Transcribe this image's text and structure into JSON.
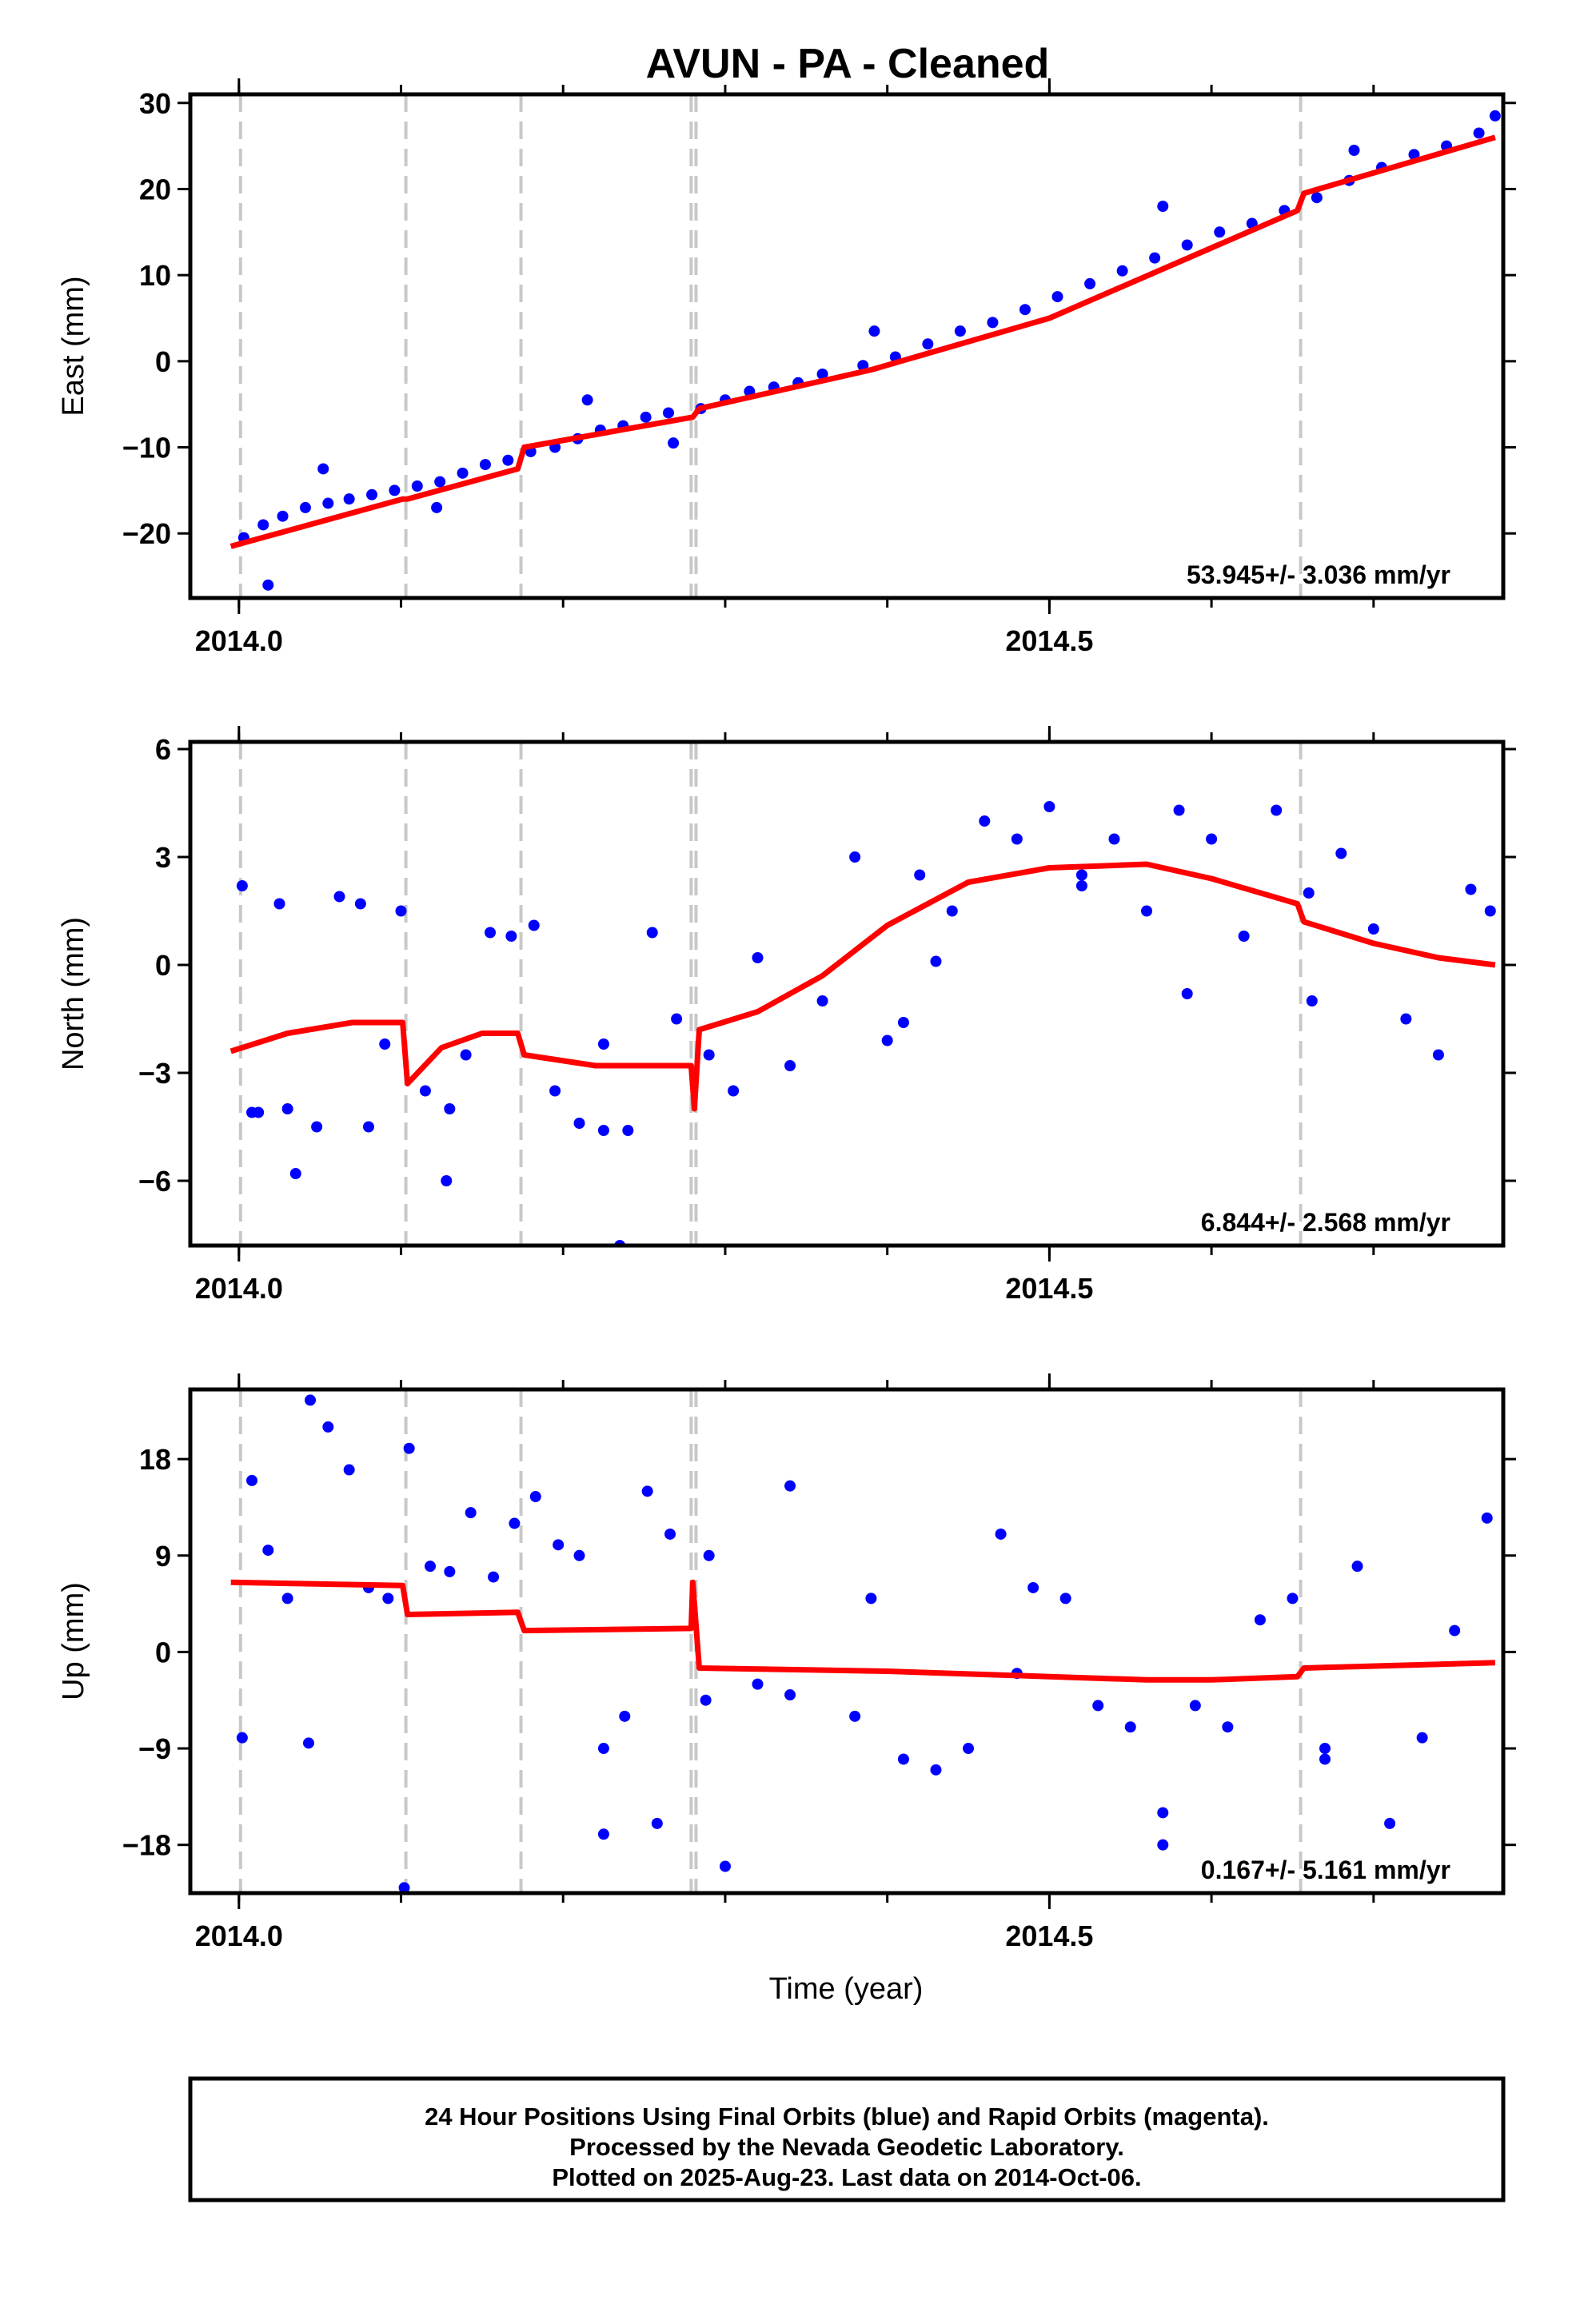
{
  "chart_data": [
    {
      "type": "scatter",
      "title": "AVUN  - PA - Cleaned",
      "xlabel": "",
      "ylabel": "East (mm)",
      "xlim": [
        2013.97,
        2014.78
      ],
      "ylim": [
        -27.5,
        31
      ],
      "xticks": [
        2014.0,
        2014.5
      ],
      "xtick_labels": [
        "2014.0",
        "2014.5"
      ],
      "yticks": [
        -20,
        -10,
        0,
        10,
        20,
        30
      ],
      "ytick_labels": [
        "−20",
        "−10",
        "0",
        "10",
        "20",
        "30"
      ],
      "rate_text": "53.945+/- 3.036 mm/yr",
      "event_lines": [
        2014.001,
        2014.103,
        2014.174,
        2014.279,
        2014.282,
        2014.655
      ],
      "series": [
        {
          "name": "Final Orbits",
          "color": "#0000ff",
          "x": [
            2014.003,
            2014.015,
            2014.027,
            2014.041,
            2014.055,
            2014.068,
            2014.082,
            2014.096,
            2014.11,
            2014.124,
            2014.138,
            2014.152,
            2014.166,
            2014.18,
            2014.195,
            2014.209,
            2014.223,
            2014.237,
            2014.251,
            2014.265,
            2014.285,
            2014.3,
            2014.315,
            2014.33,
            2014.345,
            2014.36,
            2014.385,
            2014.405,
            2014.425,
            2014.445,
            2014.465,
            2014.485,
            2014.505,
            2014.525,
            2014.545,
            2014.565,
            2014.585,
            2014.605,
            2014.625,
            2014.645,
            2014.665,
            2014.685,
            2014.705,
            2014.725,
            2014.745,
            2014.765,
            2014.775,
            2014.018,
            2014.052,
            2014.122,
            2014.215,
            2014.268,
            2014.392,
            2014.688,
            2014.57
          ],
          "y": [
            -20.5,
            -19,
            -18,
            -17,
            -16.5,
            -16,
            -15.5,
            -15,
            -14.5,
            -14,
            -13,
            -12,
            -11.5,
            -10.5,
            -10,
            -9,
            -8,
            -7.5,
            -6.5,
            -6,
            -5.5,
            -4.5,
            -3.5,
            -3,
            -2.5,
            -1.5,
            -0.5,
            0.5,
            2,
            3.5,
            4.5,
            6,
            7.5,
            9,
            10.5,
            12,
            13.5,
            15,
            16,
            17.5,
            19,
            21,
            22.5,
            24,
            25,
            26.5,
            28.5,
            -26,
            -12.5,
            -17,
            -4.5,
            -9.5,
            3.5,
            24.5,
            18
          ]
        },
        {
          "name": "Fit",
          "color": "#ff0000",
          "line": true,
          "x": [
            2013.995,
            2014.101,
            2014.104,
            2014.172,
            2014.176,
            2014.28,
            2014.284,
            2014.39,
            2014.5,
            2014.653,
            2014.657,
            2014.775
          ],
          "y": [
            -21.5,
            -16,
            -16,
            -12.5,
            -10,
            -6.5,
            -5.5,
            -1,
            5,
            17.5,
            19.5,
            26
          ]
        }
      ]
    },
    {
      "type": "scatter",
      "xlabel": "",
      "ylabel": "North (mm)",
      "xlim": [
        2013.97,
        2014.78
      ],
      "ylim": [
        -7.8,
        6.2
      ],
      "xticks": [
        2014.0,
        2014.5
      ],
      "xtick_labels": [
        "2014.0",
        "2014.5"
      ],
      "yticks": [
        -6,
        -3,
        0,
        3,
        6
      ],
      "ytick_labels": [
        "−6",
        "−3",
        "0",
        "3",
        "6"
      ],
      "rate_text": "6.844+/- 2.568 mm/yr",
      "event_lines": [
        2014.001,
        2014.103,
        2014.174,
        2014.279,
        2014.282,
        2014.655
      ],
      "series": [
        {
          "name": "Final Orbits",
          "color": "#0000ff",
          "x": [
            2014.002,
            2014.012,
            2014.025,
            2014.035,
            2014.048,
            2014.062,
            2014.075,
            2014.09,
            2014.1,
            2014.115,
            2014.128,
            2014.14,
            2014.155,
            2014.168,
            2014.182,
            2014.195,
            2014.21,
            2014.225,
            2014.24,
            2014.255,
            2014.27,
            2014.29,
            2014.305,
            2014.32,
            2014.34,
            2014.36,
            2014.38,
            2014.4,
            2014.42,
            2014.44,
            2014.46,
            2014.48,
            2014.5,
            2014.52,
            2014.54,
            2014.56,
            2014.58,
            2014.6,
            2014.62,
            2014.64,
            2014.66,
            2014.68,
            2014.7,
            2014.72,
            2014.74,
            2014.76,
            2014.772,
            2014.008,
            2014.03,
            2014.08,
            2014.13,
            2014.235,
            2014.52,
            2014.585,
            2014.662,
            2014.225,
            2014.43,
            2014.41
          ],
          "y": [
            2.2,
            -4.1,
            1.7,
            -5.8,
            -4.5,
            1.9,
            1.7,
            -2.2,
            1.5,
            -3.5,
            -6,
            -2.5,
            0.9,
            0.8,
            1.1,
            -3.5,
            -4.4,
            -2.2,
            -4.6,
            0.9,
            -1.5,
            -2.5,
            -3.5,
            0.2,
            -2.8,
            -1,
            3,
            -2.1,
            2.5,
            1.5,
            4,
            3.5,
            4.4,
            2.5,
            3.5,
            1.5,
            4.3,
            3.5,
            0.8,
            4.3,
            2,
            3.1,
            1,
            -1.5,
            -2.5,
            2.1,
            1.5,
            -4.1,
            -4,
            -4.5,
            -4,
            -7.8,
            2.2,
            -0.8,
            -1,
            -4.6,
            0.1,
            -1.6
          ]
        },
        {
          "name": "Fit",
          "color": "#ff0000",
          "line": true,
          "x": [
            2013.995,
            2014.03,
            2014.07,
            2014.101,
            2014.104,
            2014.125,
            2014.15,
            2014.172,
            2014.176,
            2014.22,
            2014.27,
            2014.279,
            2014.281,
            2014.284,
            2014.32,
            2014.36,
            2014.4,
            2014.45,
            2014.5,
            2014.56,
            2014.6,
            2014.653,
            2014.657,
            2014.7,
            2014.74,
            2014.775
          ],
          "y": [
            -2.4,
            -1.9,
            -1.6,
            -1.6,
            -3.3,
            -2.3,
            -1.9,
            -1.9,
            -2.5,
            -2.8,
            -2.8,
            -2.8,
            -4.0,
            -1.8,
            -1.3,
            -0.3,
            1.1,
            2.3,
            2.7,
            2.8,
            2.4,
            1.7,
            1.2,
            0.6,
            0.2,
            0
          ]
        }
      ]
    },
    {
      "type": "scatter",
      "xlabel": "Time (year)",
      "ylabel": "Up (mm)",
      "xlim": [
        2013.97,
        2014.78
      ],
      "ylim": [
        -22.5,
        24.5
      ],
      "xticks": [
        2014.0,
        2014.5
      ],
      "xtick_labels": [
        "2014.0",
        "2014.5"
      ],
      "yticks": [
        -18,
        -9,
        0,
        9,
        18
      ],
      "ytick_labels": [
        "−18",
        "−9",
        "0",
        "9",
        "18"
      ],
      "rate_text": "0.167+/- 5.161 mm/yr",
      "event_lines": [
        2014.001,
        2014.103,
        2014.174,
        2014.279,
        2014.282,
        2014.655
      ],
      "series": [
        {
          "name": "Final Orbits",
          "color": "#0000ff",
          "x": [
            2014.002,
            2014.008,
            2014.018,
            2014.03,
            2014.043,
            2014.055,
            2014.068,
            2014.08,
            2014.092,
            2014.105,
            2014.118,
            2014.13,
            2014.143,
            2014.157,
            2014.17,
            2014.183,
            2014.197,
            2014.21,
            2014.225,
            2014.238,
            2014.252,
            2014.266,
            2014.288,
            2014.3,
            2014.32,
            2014.34,
            2014.39,
            2014.41,
            2014.43,
            2014.45,
            2014.47,
            2014.49,
            2014.51,
            2014.53,
            2014.55,
            2014.57,
            2014.59,
            2014.61,
            2014.63,
            2014.65,
            2014.67,
            2014.69,
            2014.71,
            2014.73,
            2014.75,
            2014.77,
            2014.044,
            2014.102,
            2014.29,
            2014.38,
            2014.57,
            2014.67,
            2014.258,
            2014.225,
            2014.34,
            2014.48
          ],
          "y": [
            -8,
            16,
            9.5,
            5,
            -8.5,
            21,
            17,
            6,
            5,
            19,
            8,
            7.5,
            13,
            7,
            12,
            14.5,
            10,
            9,
            -9,
            -6,
            15,
            11,
            -4.5,
            -20,
            -3,
            -4,
            5,
            -10,
            -11,
            -9,
            11,
            6,
            5,
            -5,
            -7,
            -18,
            -5,
            -7,
            3,
            5,
            -9,
            8,
            -16,
            -8,
            2,
            12.5,
            23.5,
            -22,
            9,
            -6,
            -15,
            -10,
            -16,
            -17,
            15.5,
            -2
          ]
        },
        {
          "name": "Fit",
          "color": "#ff0000",
          "line": true,
          "x": [
            2013.995,
            2014.101,
            2014.104,
            2014.172,
            2014.176,
            2014.279,
            2014.28,
            2014.284,
            2014.4,
            2014.5,
            2014.56,
            2014.6,
            2014.653,
            2014.657,
            2014.775
          ],
          "y": [
            6.5,
            6.2,
            3.5,
            3.7,
            2.0,
            2.2,
            6.5,
            -1.5,
            -1.8,
            -2.3,
            -2.6,
            -2.6,
            -2.3,
            -1.5,
            -1.0
          ]
        }
      ]
    }
  ],
  "footer": {
    "line1": "24 Hour Positions Using Final Orbits (blue) and Rapid Orbits (magenta).",
    "line2": "Processed by the Nevada Geodetic Laboratory.",
    "line3": "Plotted on 2025-Aug-23. Last data on 2014-Oct-06."
  }
}
